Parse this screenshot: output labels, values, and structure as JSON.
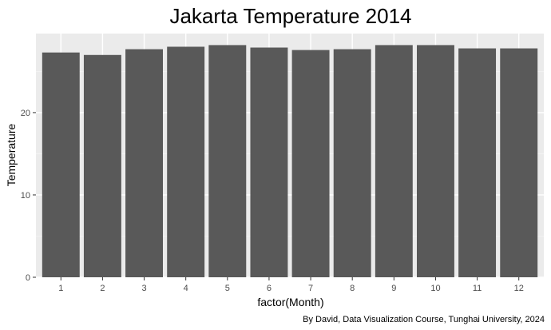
{
  "chart_data": {
    "type": "bar",
    "title": "Jakarta Temperature 2014",
    "xlabel": "factor(Month)",
    "ylabel": "Temperature",
    "caption": "By David, Data Visualization Course, Tunghai University, 2024",
    "categories": [
      "1",
      "2",
      "3",
      "4",
      "5",
      "6",
      "7",
      "8",
      "9",
      "10",
      "11",
      "12"
    ],
    "values": [
      27.3,
      27.0,
      27.7,
      28.0,
      28.2,
      27.9,
      27.6,
      27.7,
      28.2,
      28.2,
      27.8,
      27.8
    ],
    "ylim": [
      0,
      29.6
    ],
    "yticks": [
      0,
      10,
      20
    ],
    "grid": true,
    "colors": {
      "bar": "#595959",
      "panel": "#ebebeb",
      "grid_major": "#ffffff",
      "grid_minor": "#f5f5f5"
    }
  }
}
